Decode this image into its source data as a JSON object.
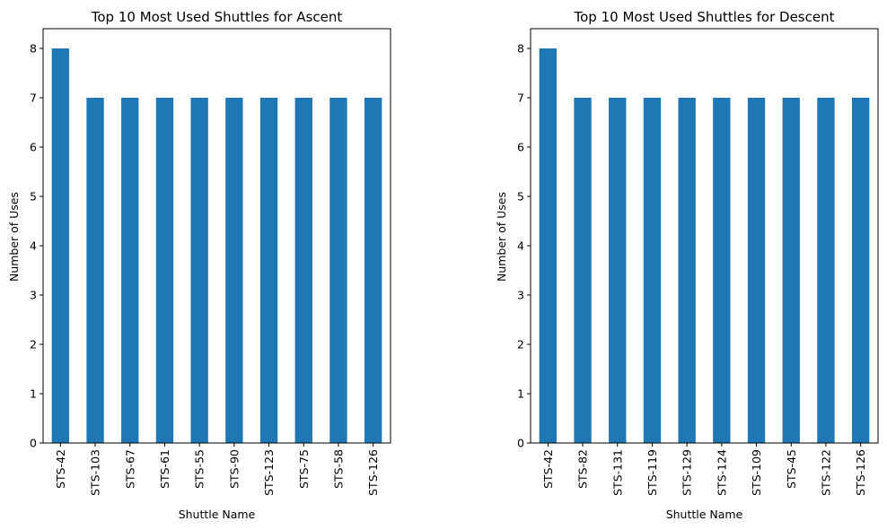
{
  "chart_data": [
    {
      "type": "bar",
      "title": "Top 10 Most Used Shuttles for Ascent",
      "xlabel": "Shuttle Name",
      "ylabel": "Number of Uses",
      "categories": [
        "STS-42",
        "STS-103",
        "STS-67",
        "STS-61",
        "STS-55",
        "STS-90",
        "STS-123",
        "STS-75",
        "STS-58",
        "STS-126"
      ],
      "values": [
        8,
        7,
        7,
        7,
        7,
        7,
        7,
        7,
        7,
        7
      ],
      "ylim": [
        0,
        8.4
      ],
      "yticks": [
        0,
        1,
        2,
        3,
        4,
        5,
        6,
        7,
        8
      ],
      "color": "#1f77b4",
      "grid": false,
      "legend": "none"
    },
    {
      "type": "bar",
      "title": "Top 10 Most Used Shuttles for Descent",
      "xlabel": "Shuttle Name",
      "ylabel": "Number of Uses",
      "categories": [
        "STS-42",
        "STS-82",
        "STS-131",
        "STS-119",
        "STS-129",
        "STS-124",
        "STS-109",
        "STS-45",
        "STS-122",
        "STS-126"
      ],
      "values": [
        8,
        7,
        7,
        7,
        7,
        7,
        7,
        7,
        7,
        7
      ],
      "ylim": [
        0,
        8.4
      ],
      "yticks": [
        0,
        1,
        2,
        3,
        4,
        5,
        6,
        7,
        8
      ],
      "color": "#1f77b4",
      "grid": false,
      "legend": "none"
    }
  ]
}
